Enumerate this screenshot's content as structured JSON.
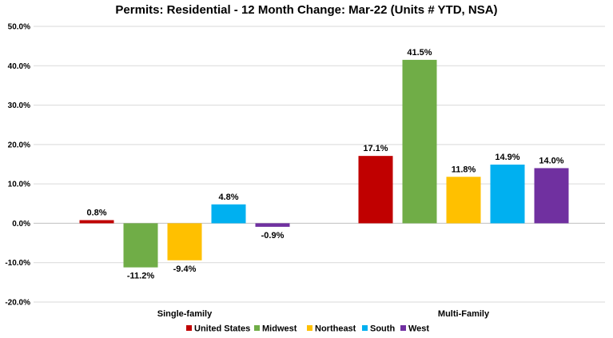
{
  "chart_data": {
    "type": "bar",
    "title": "Permits: Residential - 12 Month Change:  Mar-22 (Units # YTD, NSA)",
    "categories": [
      "Single-family",
      "Multi-Family"
    ],
    "series": [
      {
        "name": "United States",
        "color": "#c00000",
        "values": [
          0.8,
          17.1
        ],
        "labels": [
          "0.8%",
          "17.1%"
        ]
      },
      {
        "name": "Midwest",
        "color": "#70ad47",
        "values": [
          -11.2,
          41.5
        ],
        "labels": [
          "-11.2%",
          "41.5%"
        ]
      },
      {
        "name": "Northeast",
        "color": "#ffc000",
        "values": [
          -9.4,
          11.8
        ],
        "labels": [
          "-9.4%",
          "11.8%"
        ]
      },
      {
        "name": "South",
        "color": "#00b0f0",
        "values": [
          4.8,
          14.9
        ],
        "labels": [
          "4.8%",
          "14.9%"
        ]
      },
      {
        "name": "West",
        "color": "#7030a0",
        "values": [
          -0.9,
          14.0
        ],
        "labels": [
          "-0.9%",
          "14.0%"
        ]
      }
    ],
    "ylim": [
      -20,
      50
    ],
    "yticks": [
      -20,
      -10,
      0,
      10,
      20,
      30,
      40,
      50
    ],
    "ytick_labels": [
      "-20.0%",
      "-10.0%",
      "0.0%",
      "10.0%",
      "20.0%",
      "30.0%",
      "40.0%",
      "50.0%"
    ],
    "xlabel": "",
    "ylabel": "",
    "grid": "horizontal",
    "legend": "bottom"
  }
}
